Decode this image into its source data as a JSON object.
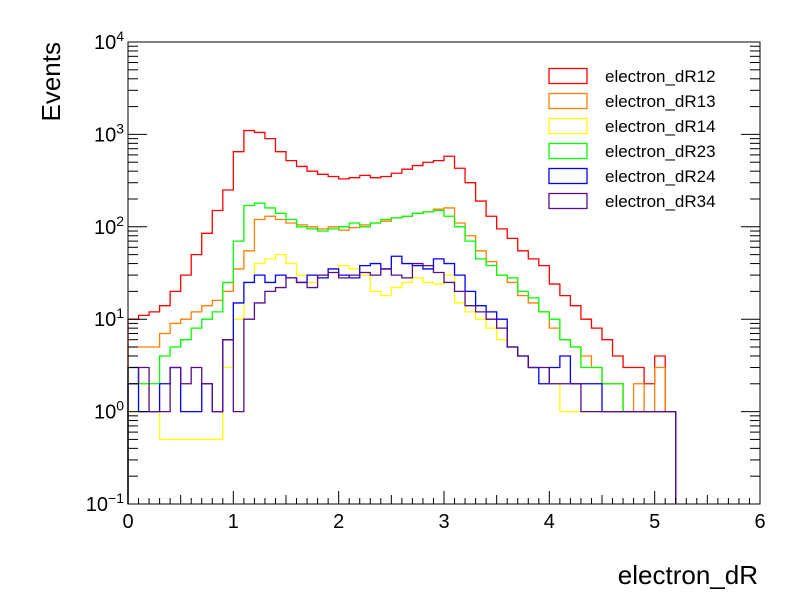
{
  "chart_data": {
    "type": "step-histogram",
    "xlabel": "electron_dR",
    "ylabel": "Events",
    "xlim": [
      0,
      6
    ],
    "ylim": [
      0.1,
      10000
    ],
    "yscale": "log",
    "grid": false,
    "legend_position": "top-right",
    "bin_width": 0.1,
    "x_ticks": [
      "0",
      "1",
      "2",
      "3",
      "4",
      "5",
      "6"
    ],
    "y_tick_exponents": [
      "−1",
      "0",
      "1",
      "2",
      "3",
      "4"
    ],
    "y_tick_base": "10",
    "series": [
      {
        "name": "electron_dR12",
        "color": "#ff0000",
        "values": [
          10,
          11,
          12,
          14,
          20,
          30,
          50,
          85,
          150,
          250,
          650,
          1100,
          1050,
          900,
          650,
          520,
          450,
          400,
          370,
          350,
          330,
          340,
          360,
          340,
          350,
          380,
          420,
          460,
          500,
          520,
          580,
          430,
          300,
          190,
          130,
          95,
          75,
          55,
          45,
          38,
          24,
          18,
          14,
          10,
          8,
          6,
          4,
          3,
          3,
          2,
          4,
          1
        ]
      },
      {
        "name": "electron_dR13",
        "color": "#ff7f00",
        "values": [
          5,
          5,
          5,
          7,
          9,
          10,
          12,
          14,
          16,
          20,
          35,
          55,
          120,
          130,
          120,
          110,
          105,
          100,
          95,
          100,
          92,
          98,
          105,
          110,
          115,
          125,
          130,
          140,
          145,
          155,
          160,
          110,
          80,
          55,
          42,
          30,
          25,
          18,
          15,
          12,
          8,
          6,
          5,
          4,
          3,
          2,
          2,
          1,
          2,
          1,
          3,
          1
        ]
      },
      {
        "name": "electron_dR14",
        "color": "#ffff00",
        "values": [
          1,
          2,
          1,
          0.5,
          0.5,
          0.5,
          0.5,
          0.5,
          0.5,
          3,
          10,
          25,
          40,
          45,
          50,
          40,
          30,
          25,
          30,
          35,
          38,
          35,
          30,
          20,
          18,
          22,
          25,
          28,
          25,
          24,
          30,
          15,
          12,
          10,
          8,
          6,
          5,
          4,
          3,
          2,
          2,
          1,
          1,
          1,
          1,
          1,
          1,
          1,
          1,
          1,
          1,
          1
        ]
      },
      {
        "name": "electron_dR23",
        "color": "#00ff00",
        "values": [
          3,
          2,
          2,
          4,
          5,
          6,
          8,
          10,
          12,
          25,
          70,
          170,
          180,
          160,
          140,
          120,
          100,
          95,
          90,
          95,
          100,
          110,
          100,
          110,
          120,
          125,
          130,
          140,
          145,
          150,
          130,
          100,
          70,
          45,
          38,
          30,
          28,
          20,
          17,
          12,
          10,
          6,
          5,
          3,
          3,
          2,
          2,
          1,
          1,
          1,
          1,
          1
        ]
      },
      {
        "name": "electron_dR24",
        "color": "#0000ff",
        "values": [
          3,
          1,
          1,
          2,
          3,
          1,
          1,
          2,
          1,
          6,
          15,
          25,
          30,
          25,
          30,
          28,
          25,
          30,
          28,
          35,
          30,
          28,
          38,
          40,
          35,
          48,
          40,
          38,
          35,
          45,
          40,
          30,
          20,
          14,
          12,
          10,
          5,
          4,
          3,
          2,
          3,
          4,
          2,
          2,
          2,
          1,
          1,
          1,
          1,
          1,
          1,
          1
        ]
      },
      {
        "name": "electron_dR34",
        "color": "#5a0c8a",
        "values": [
          2,
          3,
          1,
          1,
          3,
          2,
          3,
          2,
          1,
          6,
          1,
          10,
          15,
          20,
          22,
          28,
          25,
          22,
          30,
          32,
          28,
          30,
          32,
          30,
          35,
          30,
          28,
          40,
          38,
          32,
          25,
          20,
          14,
          12,
          10,
          8,
          5,
          4,
          3,
          3,
          2,
          2,
          2,
          1,
          1,
          1,
          1,
          1,
          1,
          1,
          1,
          1
        ]
      }
    ]
  }
}
